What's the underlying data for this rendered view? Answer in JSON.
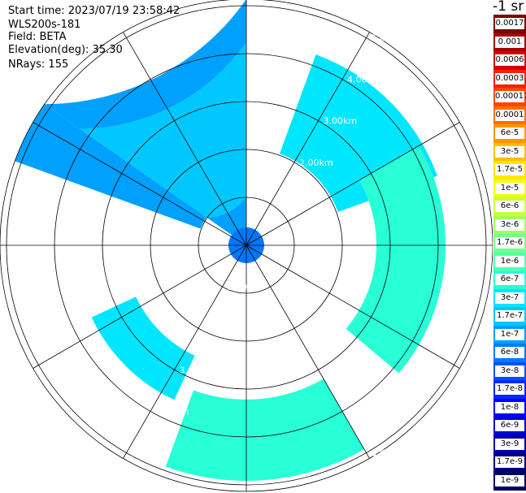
{
  "info": {
    "start_time": "Start time: 2023/07/19 23:58:42",
    "device": "WLS200s-181",
    "field": "Field: BETA",
    "elevation": "Elevation(deg): 35.30",
    "nrays": "NRays: 155"
  },
  "unit": "-1 sr",
  "range_labels": [
    "1.00km",
    "2.00km",
    "3.00km",
    "4.00km",
    "5.00km"
  ],
  "colorbar": {
    "labels": [
      "0.0017",
      "0.001",
      "0.0006",
      "0.0003",
      "0.00017",
      "0.0001",
      "6e-5",
      "3e-5",
      "1.7e-5",
      "1e-5",
      "6e-6",
      "3e-6",
      "1.7e-6",
      "1e-6",
      "6e-7",
      "3e-7",
      "1.7e-7",
      "1e-7",
      "6e-8",
      "3e-8",
      "1.7e-8",
      "1e-8",
      "6e-9",
      "3e-9",
      "1.7e-9",
      "1e-9"
    ],
    "colors": [
      "#7f0000",
      "#a80000",
      "#d20000",
      "#ff1e00",
      "#ff4600",
      "#ff6e00",
      "#ff9600",
      "#ffbe00",
      "#ffe600",
      "#f0ff0f",
      "#c8ff37",
      "#a0ff5f",
      "#78ff87",
      "#50ffaf",
      "#28ffd7",
      "#00e6ff",
      "#00c8ff",
      "#00a0ff",
      "#0078ff",
      "#0050ff",
      "#0028ff",
      "#0000ff",
      "#0000d2",
      "#0000a8",
      "#00007f",
      "#000060"
    ]
  }
}
